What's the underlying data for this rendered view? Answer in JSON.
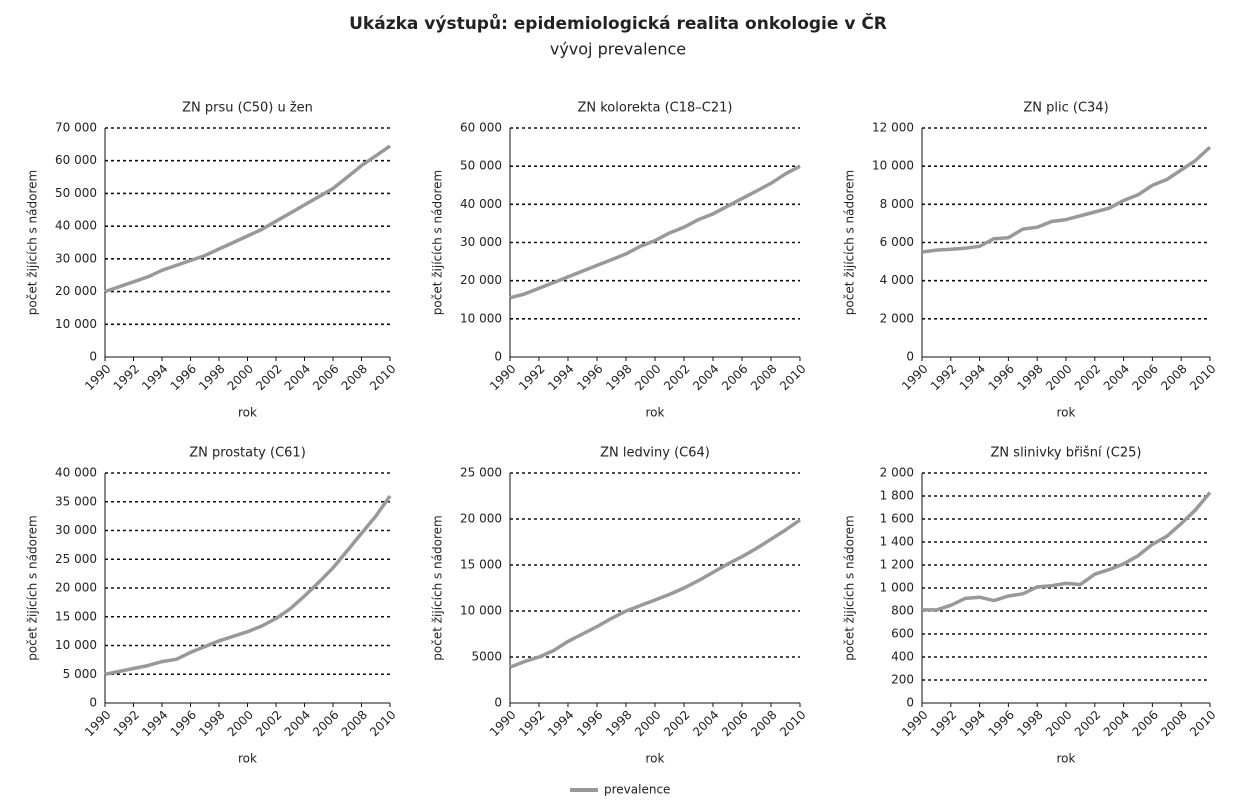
{
  "title": "Ukázka výstupů: epidemiologická realita onkologie v ČR",
  "subtitle": "vývoj prevalence",
  "legend": "prevalence",
  "chart_data": [
    {
      "type": "line",
      "title": "ZN prsu (C50) u žen",
      "x_label": "rok",
      "y_label": "počet žijících s nádorem",
      "color": "#999999",
      "grid": true,
      "x": [
        1990,
        1991,
        1992,
        1993,
        1994,
        1995,
        1996,
        1997,
        1998,
        1999,
        2000,
        2001,
        2002,
        2003,
        2004,
        2005,
        2006,
        2007,
        2008,
        2009,
        2010
      ],
      "values": [
        20000,
        21500,
        23000,
        24500,
        26500,
        28000,
        29500,
        31000,
        33000,
        35000,
        37000,
        39000,
        41500,
        44000,
        46500,
        49000,
        51500,
        55000,
        58500,
        61500,
        64500
      ],
      "xlim": [
        1990,
        2010
      ],
      "xticks": [
        1990,
        1992,
        1994,
        1996,
        1998,
        2000,
        2002,
        2004,
        2006,
        2008,
        2010
      ],
      "ylim": [
        0,
        70000
      ],
      "yticks": [
        0,
        {
          "value": 10000,
          "label": "10 000"
        },
        {
          "value": 20000,
          "label": "20 000"
        },
        {
          "value": 30000,
          "label": "30 000"
        },
        {
          "value": 40000,
          "label": "40 000"
        },
        {
          "value": 50000,
          "label": "50 000"
        },
        {
          "value": 60000,
          "label": "60 000"
        },
        {
          "value": 70000,
          "label": "70 000"
        }
      ]
    },
    {
      "type": "line",
      "title": "ZN kolorekta (C18–C21)",
      "x_label": "rok",
      "y_label": "počet žijících s nádorem",
      "color": "#999999",
      "grid": true,
      "x": [
        1990,
        1991,
        1992,
        1993,
        1994,
        1995,
        1996,
        1997,
        1998,
        1999,
        2000,
        2001,
        2002,
        2003,
        2004,
        2005,
        2006,
        2007,
        2008,
        2009,
        2010
      ],
      "values": [
        15500,
        16500,
        18000,
        19500,
        21000,
        22500,
        24000,
        25500,
        27000,
        29000,
        30500,
        32500,
        34000,
        36000,
        37500,
        39500,
        41500,
        43500,
        45500,
        48000,
        50000
      ],
      "xlim": [
        1990,
        2010
      ],
      "xticks": [
        1990,
        1992,
        1994,
        1996,
        1998,
        2000,
        2002,
        2004,
        2006,
        2008,
        2010
      ],
      "ylim": [
        0,
        60000
      ],
      "yticks": [
        0,
        {
          "value": 10000,
          "label": "10 000"
        },
        {
          "value": 20000,
          "label": "20 000"
        },
        {
          "value": 30000,
          "label": "30 000"
        },
        {
          "value": 40000,
          "label": "40 000"
        },
        {
          "value": 50000,
          "label": "50 000"
        },
        {
          "value": 60000,
          "label": "60 000"
        }
      ]
    },
    {
      "type": "line",
      "title": "ZN plic (C34)",
      "x_label": "rok",
      "y_label": "počet žijících s nádorem",
      "color": "#999999",
      "grid": true,
      "x": [
        1990,
        1991,
        1992,
        1993,
        1994,
        1995,
        1996,
        1997,
        1998,
        1999,
        2000,
        2001,
        2002,
        2003,
        2004,
        2005,
        2006,
        2007,
        2008,
        2009,
        2010
      ],
      "values": [
        5500,
        5600,
        5650,
        5700,
        5800,
        6200,
        6250,
        6700,
        6800,
        7100,
        7200,
        7400,
        7600,
        7800,
        8200,
        8500,
        9000,
        9300,
        9800,
        10300,
        11000
      ],
      "xlim": [
        1990,
        2010
      ],
      "xticks": [
        1990,
        1992,
        1994,
        1996,
        1998,
        2000,
        2002,
        2004,
        2006,
        2008,
        2010
      ],
      "ylim": [
        0,
        12000
      ],
      "yticks": [
        0,
        {
          "value": 2000,
          "label": "2 000"
        },
        {
          "value": 4000,
          "label": "4 000"
        },
        {
          "value": 6000,
          "label": "6 000"
        },
        {
          "value": 8000,
          "label": "8 000"
        },
        {
          "value": 10000,
          "label": "10 000"
        },
        {
          "value": 12000,
          "label": "12 000"
        }
      ]
    },
    {
      "type": "line",
      "title": "ZN prostaty (C61)",
      "x_label": "rok",
      "y_label": "počet žijících s nádorem",
      "color": "#999999",
      "grid": true,
      "x": [
        1990,
        1991,
        1992,
        1993,
        1994,
        1995,
        1996,
        1997,
        1998,
        1999,
        2000,
        2001,
        2002,
        2003,
        2004,
        2005,
        2006,
        2007,
        2008,
        2009,
        2010
      ],
      "values": [
        5000,
        5500,
        6000,
        6500,
        7200,
        7600,
        8800,
        9800,
        10800,
        11600,
        12400,
        13400,
        14700,
        16400,
        18600,
        21000,
        23500,
        26500,
        29500,
        32500,
        36000
      ],
      "xlim": [
        1990,
        2010
      ],
      "xticks": [
        1990,
        1992,
        1994,
        1996,
        1998,
        2000,
        2002,
        2004,
        2006,
        2008,
        2010
      ],
      "ylim": [
        0,
        40000
      ],
      "yticks": [
        0,
        {
          "value": 5000,
          "label": "5 000"
        },
        {
          "value": 10000,
          "label": "10 000"
        },
        {
          "value": 15000,
          "label": "15 000"
        },
        {
          "value": 20000,
          "label": "20 000"
        },
        {
          "value": 25000,
          "label": "25 000"
        },
        {
          "value": 30000,
          "label": "30 000"
        },
        {
          "value": 35000,
          "label": "35 000"
        },
        {
          "value": 40000,
          "label": "40 000"
        }
      ]
    },
    {
      "type": "line",
      "title": "ZN ledviny (C64)",
      "x_label": "rok",
      "y_label": "počet žijících s nádorem",
      "color": "#999999",
      "grid": true,
      "x": [
        1990,
        1991,
        1992,
        1993,
        1994,
        1995,
        1996,
        1997,
        1998,
        1999,
        2000,
        2001,
        2002,
        2003,
        2004,
        2005,
        2006,
        2007,
        2008,
        2009,
        2010
      ],
      "values": [
        3900,
        4500,
        5000,
        5700,
        6700,
        7500,
        8300,
        9200,
        10000,
        10600,
        11200,
        11800,
        12500,
        13300,
        14200,
        15100,
        15900,
        16800,
        17800,
        18800,
        19900
      ],
      "xlim": [
        1990,
        2010
      ],
      "xticks": [
        1990,
        1992,
        1994,
        1996,
        1998,
        2000,
        2002,
        2004,
        2006,
        2008,
        2010
      ],
      "ylim": [
        0,
        25000
      ],
      "yticks": [
        0,
        5000,
        {
          "value": 10000,
          "label": "10 000"
        },
        {
          "value": 15000,
          "label": "15 000"
        },
        {
          "value": 20000,
          "label": "20 000"
        },
        {
          "value": 25000,
          "label": "25 000"
        }
      ]
    },
    {
      "type": "line",
      "title": "ZN slinivky břišní (C25)",
      "x_label": "rok",
      "y_label": "počet žijících s nádorem",
      "color": "#999999",
      "grid": true,
      "x": [
        1990,
        1991,
        1992,
        1993,
        1994,
        1995,
        1996,
        1997,
        1998,
        1999,
        2000,
        2001,
        2002,
        2003,
        2004,
        2005,
        2006,
        2007,
        2008,
        2009,
        2010
      ],
      "values": [
        810,
        810,
        850,
        910,
        920,
        890,
        930,
        950,
        1010,
        1020,
        1040,
        1030,
        1120,
        1160,
        1210,
        1280,
        1380,
        1450,
        1560,
        1680,
        1830
      ],
      "xlim": [
        1990,
        2010
      ],
      "xticks": [
        1990,
        1992,
        1994,
        1996,
        1998,
        2000,
        2002,
        2004,
        2006,
        2008,
        2010
      ],
      "ylim": [
        0,
        2000
      ],
      "yticks": [
        0,
        200,
        400,
        600,
        800,
        {
          "value": 1000,
          "label": "1 000"
        },
        {
          "value": 1200,
          "label": "1 200"
        },
        {
          "value": 1400,
          "label": "1 400"
        },
        {
          "value": 1600,
          "label": "1 600"
        },
        {
          "value": 1800,
          "label": "1 800"
        },
        {
          "value": 2000,
          "label": "2 000"
        }
      ]
    }
  ]
}
